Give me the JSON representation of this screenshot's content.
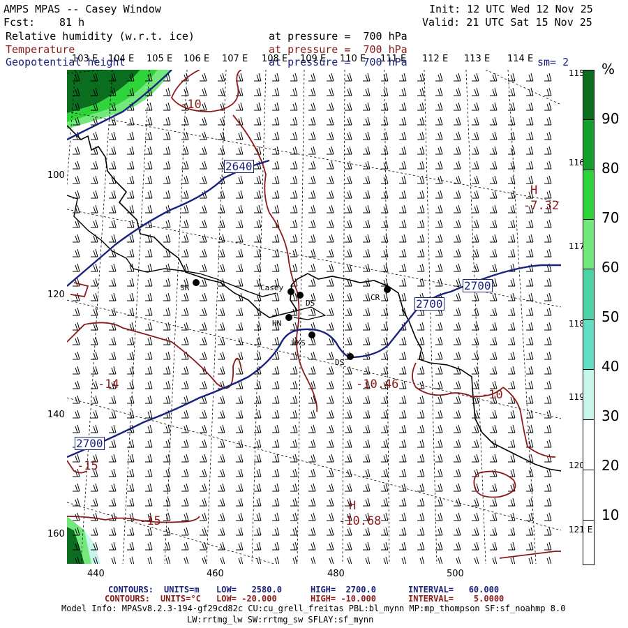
{
  "header": {
    "title": "AMPS MPAS -- Casey Window",
    "fcst_label": "Fcst:",
    "fcst_value": "81 h",
    "init": "Init: 12 UTC Wed 12 Nov 25",
    "valid": "Valid: 21 UTC Sat 15 Nov 25",
    "fields": [
      {
        "name": "Relative humidity (w.r.t. ice)",
        "level": "at pressure =  700 hPa",
        "color": "#000000"
      },
      {
        "name": "Temperature",
        "level": "at pressure =  700 hPa",
        "color": "#8b1a1a"
      },
      {
        "name": "Geopotential height",
        "level": "at pressure =  700 hPa",
        "color": "#1a237e"
      }
    ],
    "sm": "sm= 2"
  },
  "lon_top": [
    "103 E",
    "104 E",
    "105 E",
    "106 E",
    "107 E",
    "108 E",
    "109 E",
    "110 E",
    "111 E",
    "112 E",
    "113 E",
    "114 E"
  ],
  "lon_right": [
    "115 E",
    "116 E",
    "117 E",
    "118 E",
    "119 E",
    "120 E",
    "121 E"
  ],
  "x_ticks": [
    "440",
    "460",
    "480",
    "500"
  ],
  "y_ticks": [
    "100",
    "120",
    "140",
    "160"
  ],
  "colorbar": {
    "unit": "%",
    "labels": [
      "90",
      "80",
      "70",
      "60",
      "50",
      "40",
      "30",
      "20",
      "10"
    ],
    "colors": [
      "#0b6e1e",
      "#12a02c",
      "#2fd43a",
      "#73e87b",
      "#4cd3a6",
      "#5fe0c6",
      "#c8f5ec",
      "#ffffff",
      "#ffffff"
    ]
  },
  "stations": [
    {
      "id": "SR"
    },
    {
      "id": "Casey"
    },
    {
      "id": "DS"
    },
    {
      "id": "CR"
    },
    {
      "id": "HN"
    },
    {
      "id": "WKS"
    },
    {
      "id": "DS2",
      "label": "DS"
    }
  ],
  "contour_labels": {
    "height": [
      "2640",
      "2700",
      "2700",
      "2700"
    ],
    "temp": [
      "-10",
      "-15",
      "-15",
      "-10",
      "-15",
      "-10.46",
      "-7.32",
      "-10.68"
    ],
    "highs": [
      "H",
      "H"
    ],
    "temp_minus14": "-14"
  },
  "footer": {
    "line1_label": "CONTOURS:",
    "line1_units": "UNITS=m",
    "line1_low": "LOW=   2580.0",
    "line1_high": "HIGH=  2700.0",
    "line1_interval": "INTERVAL=   60.000",
    "line2_label": "CONTOURS:",
    "line2_units": "UNITS=°C",
    "line2_low": "LOW= -20.000",
    "line2_high": "HIGH= -10.000",
    "line2_interval": "INTERVAL=    5.0000",
    "model_info": "Model Info: MPASv8.2.3-194-gf29cd82c CU:cu_grell_freitas PBL:bl_mynn MP:mp_thompson SF:sf_noahmp 8.0",
    "model_info2": "LW:rrtmg_lw SW:rrtmg_sw SFLAY:sf_mynn"
  }
}
